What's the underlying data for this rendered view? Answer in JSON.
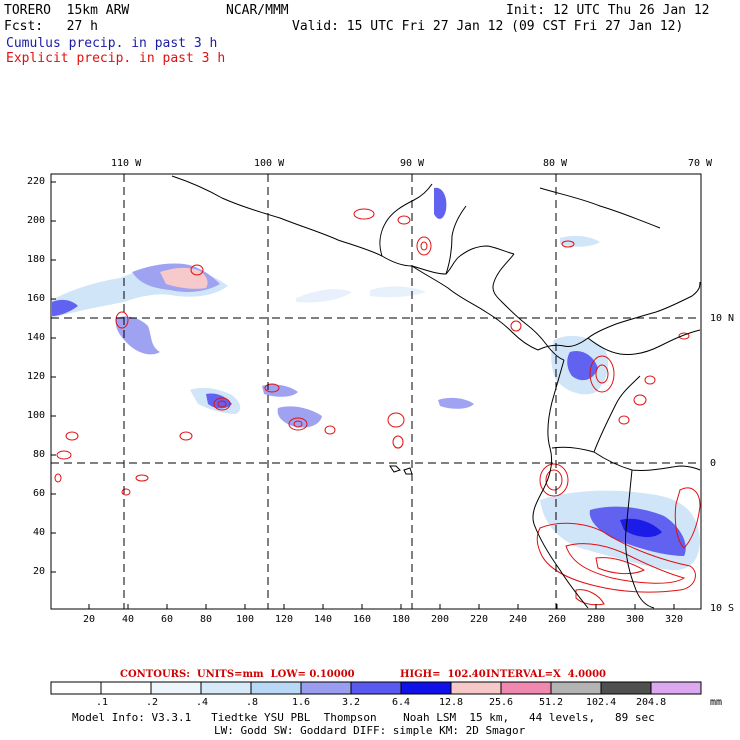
{
  "header": {
    "model": "TORERO  15km ARW",
    "org": "NCAR/MMM",
    "init": "Init: 12 UTC Thu 26 Jan 12",
    "fcst": "Fcst:   27 h",
    "valid": "Valid: 15 UTC Fri 27 Jan 12 (09 CST Fri 27 Jan 12)",
    "legend_cumulus": "Cumulus precip. in past 3 h",
    "legend_explicit": "Explicit precip. in past 3 h"
  },
  "map": {
    "top_lon_labels": [
      "110 W",
      "100 W",
      "90 W",
      "80 W",
      "70 W"
    ],
    "right_lat_labels": [
      "10 N",
      "0",
      "10 S"
    ],
    "y_ticks": [
      "220",
      "200",
      "180",
      "160",
      "140",
      "120",
      "100",
      "80",
      "60",
      "40",
      "20"
    ],
    "x_ticks": [
      "20",
      "40",
      "60",
      "80",
      "100",
      "120",
      "140",
      "160",
      "180",
      "200",
      "220",
      "240",
      "260",
      "280",
      "300",
      "320"
    ]
  },
  "contours_line": {
    "label": "CONTOURS:  UNITS=mm  LOW= 0.10000",
    "high": "HIGH=  102.40",
    "interval": "INTERVAL=X  4.0000"
  },
  "colorbar": {
    "labels": [
      ".1",
      ".2",
      ".4",
      ".8",
      "1.6",
      "3.2",
      "6.4",
      "12.8",
      "25.6",
      "51.2",
      "102.4",
      "204.8"
    ],
    "units": "mm",
    "colors": [
      "#ffffff",
      "#ffffff",
      "#eef6fc",
      "#d6eafa",
      "#b8d8f6",
      "#9a9ef0",
      "#5a5af0",
      "#1010e8",
      "#f6c8c8",
      "#f088b0",
      "#b4b4b4",
      "#505050",
      "#dca8f0"
    ]
  },
  "footer": {
    "line1": "Model Info: V3.3.1   Tiedtke YSU PBL  Thompson    Noah LSM  15 km,   44 levels,   89 sec",
    "line2": "LW: Godd SW: Goddard DIFF: simple KM: 2D Smagor"
  }
}
